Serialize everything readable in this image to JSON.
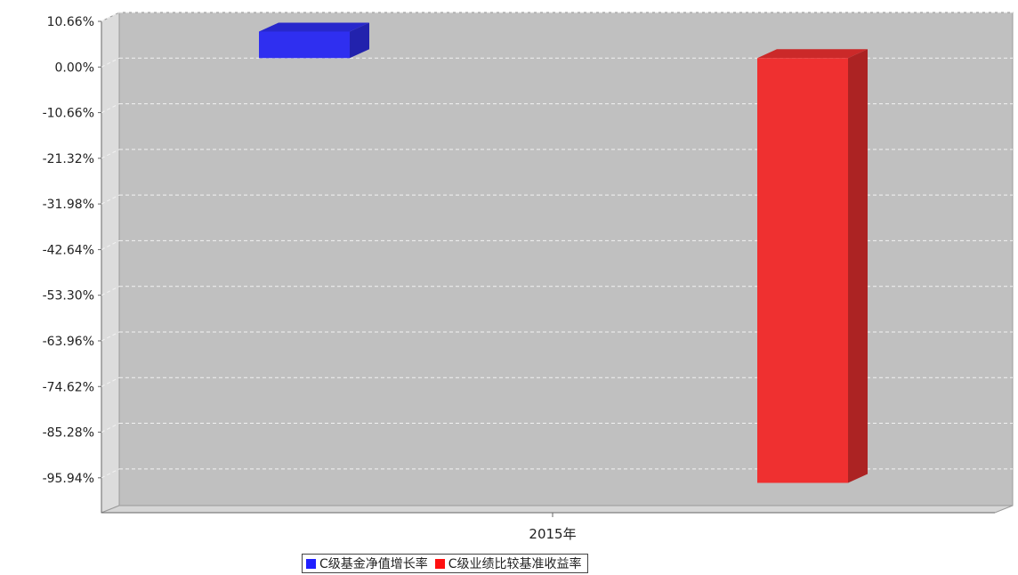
{
  "chart_data": {
    "type": "bar",
    "title": "",
    "xlabel": "",
    "ylabel": "",
    "categories": [
      "2015年"
    ],
    "y_ticks": [
      "10.66%",
      "0.00%",
      "-10.66%",
      "-21.32%",
      "-31.98%",
      "-42.64%",
      "-53.30%",
      "-63.96%",
      "-74.62%",
      "-85.28%",
      "-95.94%"
    ],
    "ylim": [
      -104.5,
      10.66
    ],
    "grid": true,
    "legend_position": "bottom",
    "series": [
      {
        "name": "C级基金净值增长率",
        "values": [
          6.2
        ],
        "color": "#2f2ff0"
      },
      {
        "name": "C级业绩比较基准收益率",
        "values": [
          -99.2
        ],
        "color": "#ef3030"
      }
    ]
  }
}
